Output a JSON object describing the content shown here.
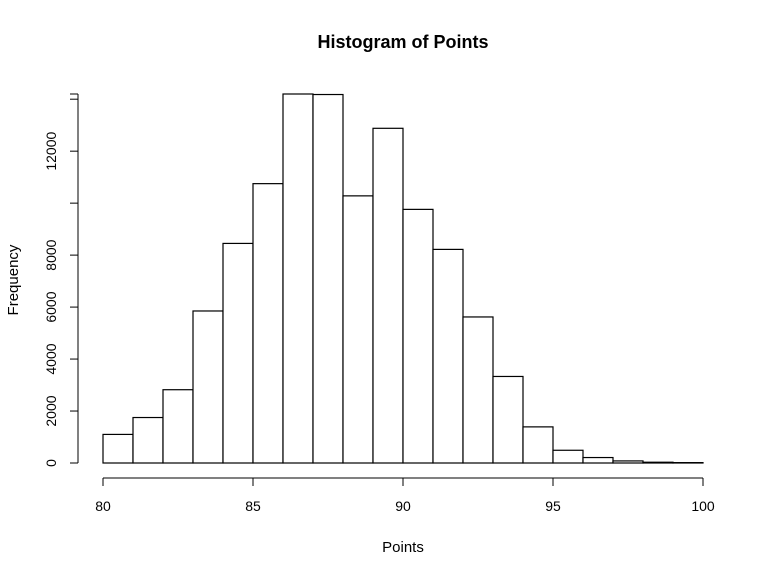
{
  "chart_data": {
    "type": "bar",
    "title": "Histogram of Points",
    "xlabel": "Points",
    "ylabel": "Frequency",
    "bin_edges": [
      80,
      81,
      82,
      83,
      84,
      85,
      86,
      87,
      88,
      89,
      90,
      91,
      92,
      93,
      94,
      95,
      96,
      97,
      98,
      99,
      100
    ],
    "values": [
      1100,
      1750,
      2820,
      5850,
      8450,
      10750,
      14200,
      14180,
      10280,
      12880,
      9760,
      8220,
      5620,
      3330,
      1390,
      490,
      210,
      80,
      30,
      15
    ],
    "xlim": [
      80,
      100
    ],
    "ylim": [
      0,
      14200
    ],
    "xticks": [
      80,
      85,
      90,
      95,
      100
    ],
    "yticks": [
      0,
      2000,
      4000,
      6000,
      8000,
      12000
    ],
    "grid": false
  }
}
